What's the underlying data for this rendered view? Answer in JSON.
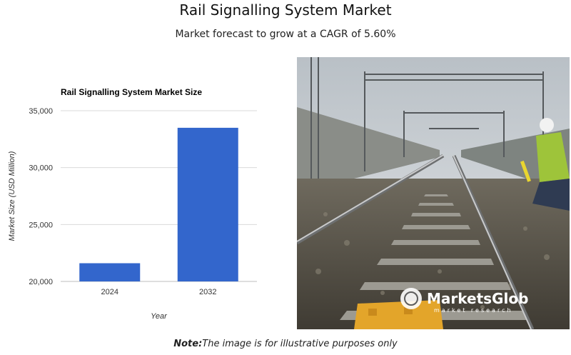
{
  "header": {
    "title": "Rail Signalling System Market",
    "subtitle": "Market forecast to grow at a CAGR of 5.60%"
  },
  "chart_data": {
    "type": "bar",
    "title": "Rail Signalling System Market Size",
    "xlabel": "Year",
    "ylabel": "Market Size (USD Million)",
    "categories": [
      "2024",
      "2032"
    ],
    "values": [
      21600,
      33500
    ],
    "ylim": [
      20000,
      35000
    ],
    "yticks": [
      "20,000",
      "25,000",
      "30,000",
      "35,000"
    ],
    "ytick_values": [
      20000,
      25000,
      30000,
      35000
    ],
    "bar_color": "#3366cc",
    "grid": true
  },
  "photo": {
    "logo_text": "MarketsGlob",
    "logo_sub": "market research"
  },
  "footer": {
    "note_label": "Note:",
    "note_text": "The image is for illustrative purposes only"
  }
}
